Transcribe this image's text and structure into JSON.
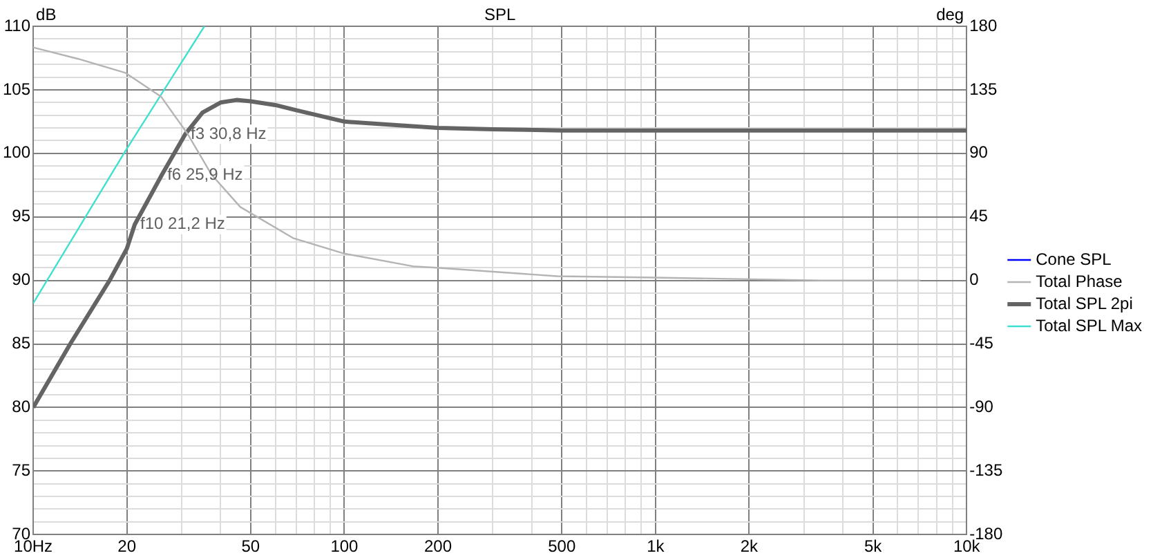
{
  "chart_data": {
    "type": "line",
    "title": "SPL",
    "ylabel": "dB",
    "y2label": "deg",
    "log": "x",
    "grid": true,
    "legend": "right",
    "marker": "none",
    "line_style": "solid",
    "xlim": [
      10,
      10000
    ],
    "xticks": [
      {
        "value": 10,
        "label": "10Hz"
      },
      20,
      {
        "value": 30,
        "label": null
      },
      {
        "value": 40,
        "label": null
      },
      50,
      {
        "value": 60,
        "label": null
      },
      {
        "value": 70,
        "label": null
      },
      {
        "value": 80,
        "label": null
      },
      {
        "value": 90,
        "label": null
      },
      100,
      200,
      {
        "value": 300,
        "label": null
      },
      {
        "value": 400,
        "label": null
      },
      500,
      {
        "value": 600,
        "label": null
      },
      {
        "value": 700,
        "label": null
      },
      {
        "value": 800,
        "label": null
      },
      {
        "value": 900,
        "label": null
      },
      {
        "value": 1000,
        "label": "1k"
      },
      {
        "value": 2000,
        "label": "2k"
      },
      {
        "value": 3000,
        "label": null
      },
      {
        "value": 4000,
        "label": null
      },
      {
        "value": 5000,
        "label": "5k"
      },
      {
        "value": 6000,
        "label": null
      },
      {
        "value": 7000,
        "label": null
      },
      {
        "value": 8000,
        "label": null
      },
      {
        "value": 9000,
        "label": null
      },
      {
        "value": 10000,
        "label": "10k"
      }
    ],
    "ylim": [
      70,
      110
    ],
    "yticks": [
      70,
      {
        "value": 71,
        "label": null
      },
      {
        "value": 72,
        "label": null
      },
      {
        "value": 73,
        "label": null
      },
      {
        "value": 74,
        "label": null
      },
      75,
      {
        "value": 76,
        "label": null
      },
      {
        "value": 77,
        "label": null
      },
      {
        "value": 78,
        "label": null
      },
      {
        "value": 79,
        "label": null
      },
      80,
      {
        "value": 81,
        "label": null
      },
      {
        "value": 82,
        "label": null
      },
      {
        "value": 83,
        "label": null
      },
      {
        "value": 84,
        "label": null
      },
      85,
      {
        "value": 86,
        "label": null
      },
      {
        "value": 87,
        "label": null
      },
      {
        "value": 88,
        "label": null
      },
      {
        "value": 89,
        "label": null
      },
      90,
      {
        "value": 91,
        "label": null
      },
      {
        "value": 92,
        "label": null
      },
      {
        "value": 93,
        "label": null
      },
      {
        "value": 94,
        "label": null
      },
      95,
      {
        "value": 96,
        "label": null
      },
      {
        "value": 97,
        "label": null
      },
      {
        "value": 98,
        "label": null
      },
      {
        "value": 99,
        "label": null
      },
      100,
      {
        "value": 101,
        "label": null
      },
      {
        "value": 102,
        "label": null
      },
      {
        "value": 103,
        "label": null
      },
      {
        "value": 104,
        "label": null
      },
      105,
      {
        "value": 106,
        "label": null
      },
      {
        "value": 107,
        "label": null
      },
      {
        "value": 108,
        "label": null
      },
      {
        "value": 109,
        "label": null
      },
      110
    ],
    "y2lim": [
      -180,
      180
    ],
    "y2ticks": [
      -180,
      -135,
      -90,
      -45,
      0,
      45,
      90,
      135,
      180
    ],
    "series": [
      {
        "name": "Cone SPL",
        "color": "#0000ff"
      },
      {
        "name": "Total Phase",
        "color": "#b4b4b4",
        "axis": "y2",
        "x": [
          10,
          13.9,
          19.8,
          25.8,
          31.3,
          37.4,
          46.3,
          68.4,
          100,
          166,
          198,
          482,
          1000,
          3400,
          7100
        ],
        "values": [
          165,
          157,
          147,
          130,
          104,
          75,
          52,
          30,
          19,
          10,
          9,
          3,
          2,
          0,
          0
        ]
      },
      {
        "name": "Total SPL 2pi",
        "color": "#646464",
        "x": [
          10,
          13.15,
          17.6,
          20,
          21.2,
          25.9,
          30.8,
          35,
          40,
          45,
          50,
          60,
          70,
          100,
          150,
          200,
          300,
          500,
          1000,
          10000
        ],
        "values": [
          80,
          85,
          90,
          92.5,
          94.4,
          98.3,
          101.5,
          103.2,
          104,
          104.2,
          104.1,
          103.8,
          103.4,
          102.5,
          102.2,
          102,
          101.9,
          101.8,
          101.8,
          101.8
        ]
      },
      {
        "name": "Total SPL Max",
        "color": "#40e0d0",
        "x": [
          10,
          19.8,
          35.5
        ],
        "values": [
          88.2,
          100.2,
          110
        ]
      }
    ],
    "annotations": [
      {
        "text": "f3 30,8 Hz",
        "x": 30.8,
        "y": 101.5
      },
      {
        "text": "f6 25,9 Hz",
        "x": 25.9,
        "y": 98.3
      },
      {
        "text": "f10 21,2 Hz",
        "x": 21.2,
        "y": 94.4
      }
    ]
  }
}
